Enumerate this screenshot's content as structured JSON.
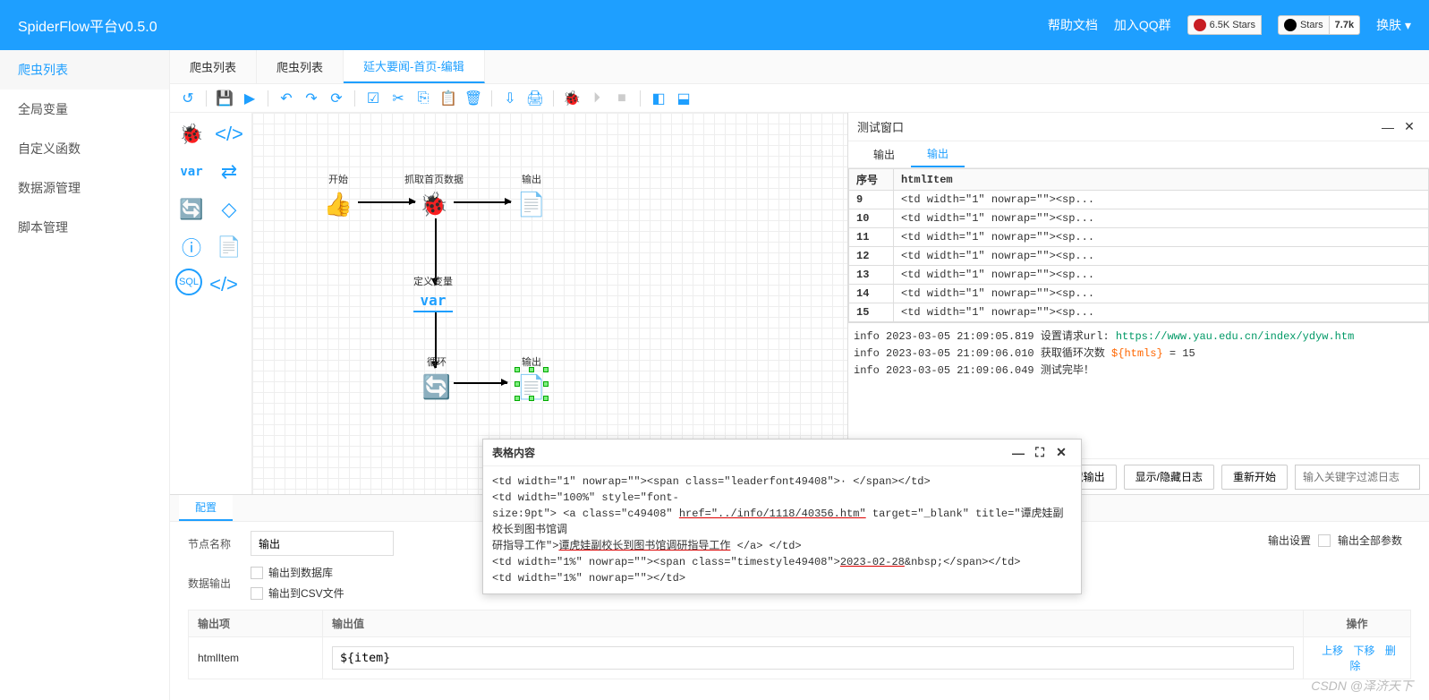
{
  "header": {
    "title": "SpiderFlow平台v0.5.0",
    "help_label": "帮助文档",
    "qq_label": "加入QQ群",
    "gitee_stars": "6.5K Stars",
    "github_label": "Stars",
    "github_count": "7.7k",
    "skin_label": "换肤"
  },
  "sidebar": {
    "items": [
      {
        "label": "爬虫列表",
        "active": true
      },
      {
        "label": "全局变量",
        "active": false
      },
      {
        "label": "自定义函数",
        "active": false
      },
      {
        "label": "数据源管理",
        "active": false
      },
      {
        "label": "脚本管理",
        "active": false
      }
    ]
  },
  "tabs": [
    {
      "label": "爬虫列表",
      "active": false
    },
    {
      "label": "爬虫列表",
      "active": false
    },
    {
      "label": "延大要闻-首页-编辑",
      "active": true
    }
  ],
  "canvas": {
    "nodes": {
      "start": {
        "label": "开始"
      },
      "crawl": {
        "label": "抓取首页数据"
      },
      "out1": {
        "label": "输出"
      },
      "var": {
        "label": "定义变量",
        "text": "var"
      },
      "loop": {
        "label": "循环"
      },
      "out2": {
        "label": "输出"
      }
    }
  },
  "palette_var": "var",
  "debug": {
    "title": "测试窗口",
    "tab1": "输出",
    "tab2": "输出",
    "col_seq": "序号",
    "col_item": "htmlItem",
    "rows": [
      {
        "seq": "9",
        "val": "<td width=\"1\" nowrap=\"\"><sp..."
      },
      {
        "seq": "10",
        "val": "<td width=\"1\" nowrap=\"\"><sp..."
      },
      {
        "seq": "11",
        "val": "<td width=\"1\" nowrap=\"\"><sp..."
      },
      {
        "seq": "12",
        "val": "<td width=\"1\" nowrap=\"\"><sp..."
      },
      {
        "seq": "13",
        "val": "<td width=\"1\" nowrap=\"\"><sp..."
      },
      {
        "seq": "14",
        "val": "<td width=\"1\" nowrap=\"\"><sp..."
      },
      {
        "seq": "15",
        "val": "<td width=\"1\" nowrap=\"\"><sp..."
      }
    ],
    "log1_pre": "info 2023-03-05 21:09:05.819 设置请求url: ",
    "log1_url": "https://www.yau.edu.cn/index/ydyw.htm",
    "log2_pre": "info 2023-03-05 21:09:06.010 获取循环次数 ",
    "log2_expr": "${htmls}",
    "log2_post": " = 15",
    "log3": "info 2023-03-05 21:09:06.049 测试完毕！",
    "btn_close": "关闭",
    "btn_toggle_out": "显示/隐藏输出",
    "btn_toggle_log": "显示/隐藏日志",
    "btn_restart": "重新开始",
    "filter_placeholder": "输入关键字过滤日志"
  },
  "config": {
    "tab_label": "配置",
    "node_name_label": "节点名称",
    "node_name_value": "输出",
    "data_output_label": "数据输出",
    "chk_db": "输出到数据库",
    "chk_csv": "输出到CSV文件",
    "out_settings_label": "输出设置",
    "out_all_label": "输出全部参数",
    "col_out_item": "输出项",
    "col_out_val": "输出值",
    "col_op": "操作",
    "row_item": "htmlItem",
    "row_val": "${item}",
    "op_up": "上移",
    "op_down": "下移",
    "op_del": "删除"
  },
  "popup": {
    "title": "表格内容",
    "l1": "<td width=\"1\" nowrap=\"\"><span class=\"leaderfont49408\">· </span></td>",
    "l2a": "<td width=\"100%\" style=\"font-",
    "l2b": "size:9pt\"> <a class=\"c49408\" ",
    "l2c": "href=\"../info/1118/40356.htm\"",
    "l2d": " target=\"_blank\" title=\"谭虎娃副校长到图书馆调",
    "l2e": "研指导工作\">",
    "l2f": "谭虎娃副校长到图书馆调研指导工作",
    "l2g": " </a> </td>",
    "l3a": "<td width=\"1%\" nowrap=\"\"><span class=\"timestyle49408\">",
    "l3b": "2023-02-28",
    "l3c": "&nbsp;</span></td>",
    "l4": "<td width=\"1%\" nowrap=\"\"></td>"
  },
  "watermark": "CSDN @泽济天下"
}
